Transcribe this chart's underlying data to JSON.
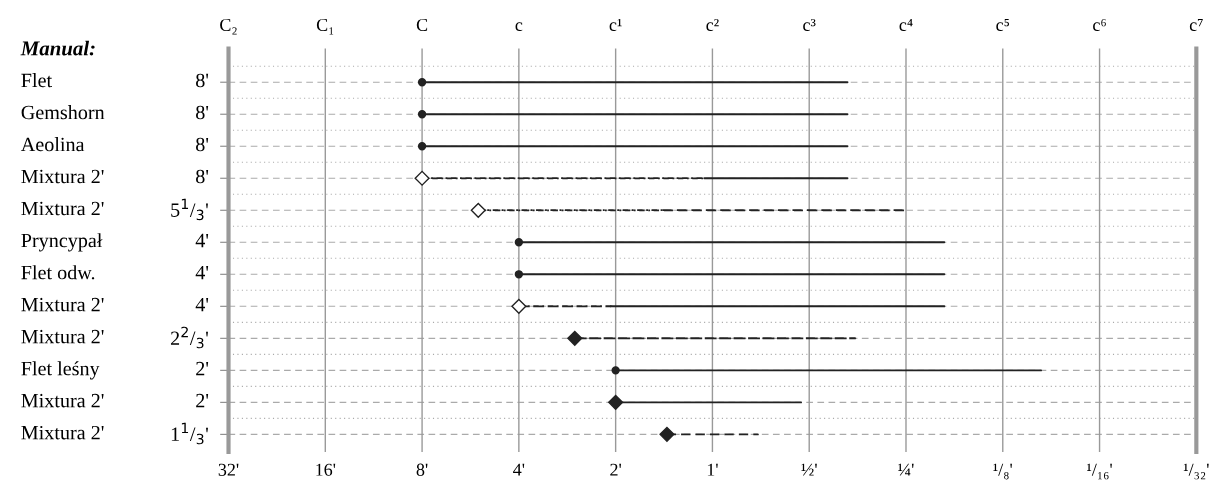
{
  "chart_data": {
    "type": "bar",
    "orientation": "horizontal",
    "title": "Manual:",
    "categories": [
      "Flet",
      "Gemshorn",
      "Aeolina",
      "Mixtura 2'",
      "Mixtura 2'",
      "Pryncypał",
      "Flet odw.",
      "Mixtura 2'",
      "Mixtura 2'",
      "Flet leśny",
      "Mixtura 2'",
      "Mixtura 2'"
    ],
    "y2_categories": [
      "8'",
      "8'",
      "8'",
      "8'",
      "5$^{1}$/$_{3}$'",
      "4'",
      "4'",
      "4'",
      "2$^{2}$/$_{3}$'",
      "2'",
      "2'",
      "1$^{1}$/$_{3}$'"
    ],
    "series": [
      {
        "color": "#222222",
        "line_style": "solid",
        "marker": "circle",
        "base": [
          8,
          8,
          8,
          null,
          null,
          4,
          4,
          null,
          null,
          2,
          null,
          null
        ],
        "values": [
          -7.62,
          -7.62,
          -7.62,
          null,
          null,
          -3.81,
          -3.81,
          null,
          null,
          -1.905,
          null,
          null
        ]
      },
      {
        "color": "#222222",
        "line_style": "dotted",
        "marker": "diamond",
        "base": [
          null,
          null,
          null,
          8,
          5.35,
          null,
          null,
          4,
          null,
          null,
          null,
          null
        ],
        "values": [
          null,
          null,
          null,
          -6.94,
          -3.92,
          null,
          null,
          -1.93,
          null,
          null,
          null,
          null
        ]
      },
      {
        "color": "#222222",
        "line_style": "solid",
        "base": [
          null,
          null,
          null,
          1.06,
          null,
          null,
          null,
          2.07,
          null,
          null,
          null,
          null
        ],
        "values": [
          null,
          null,
          null,
          -0.68,
          null,
          null,
          null,
          -1.88,
          null,
          null,
          null,
          null
        ]
      },
      {
        "color": "#222222",
        "line_style": "dashed",
        "base": [
          null,
          null,
          null,
          null,
          1.43,
          null,
          null,
          null,
          null,
          null,
          null,
          null
        ],
        "values": [
          null,
          null,
          null,
          null,
          -1.18,
          null,
          null,
          null,
          null,
          null,
          null,
          null
        ]
      },
      {
        "color": "#222222",
        "line_style": "dashed",
        "marker": "diamond",
        "base": [
          null,
          null,
          null,
          null,
          null,
          null,
          null,
          null,
          2.68,
          null,
          null,
          1.385
        ],
        "values": [
          null,
          null,
          null,
          null,
          null,
          null,
          null,
          null,
          -2.32,
          null,
          null,
          -0.663
        ]
      },
      {
        "color": "#222222",
        "line_style": "solid",
        "marker": "diamond",
        "base": [
          null,
          null,
          null,
          null,
          null,
          null,
          null,
          null,
          null,
          null,
          2,
          null
        ],
        "values": [
          null,
          null,
          null,
          null,
          null,
          null,
          null,
          null,
          null,
          null,
          -1.47,
          null
        ]
      }
    ],
    "log": "x",
    "xlim": [
      32,
      0.03125
    ],
    "xticks": [
      {
        "value": 32,
        "label": "32'"
      },
      {
        "value": 16,
        "label": "16'"
      },
      {
        "value": 8,
        "label": "8'"
      },
      {
        "value": 4,
        "label": "4'"
      },
      {
        "value": 2,
        "label": "2'"
      },
      {
        "value": 1,
        "label": "1'"
      },
      {
        "value": 0.5,
        "label": "½'"
      },
      {
        "value": 0.25,
        "label": "¼'"
      },
      {
        "value": 0.125,
        "label": "¹/₈'"
      },
      {
        "value": 0.0625,
        "label": "¹/₁₆'"
      },
      {
        "value": 0.03125,
        "label": "¹/₃₂'"
      }
    ],
    "annotations": [
      "C₂",
      "C₁",
      "C",
      "c",
      "c¹",
      "c²",
      "c³",
      "c⁴",
      "c⁵",
      "c⁶",
      "c⁷"
    ],
    "grid": true
  }
}
